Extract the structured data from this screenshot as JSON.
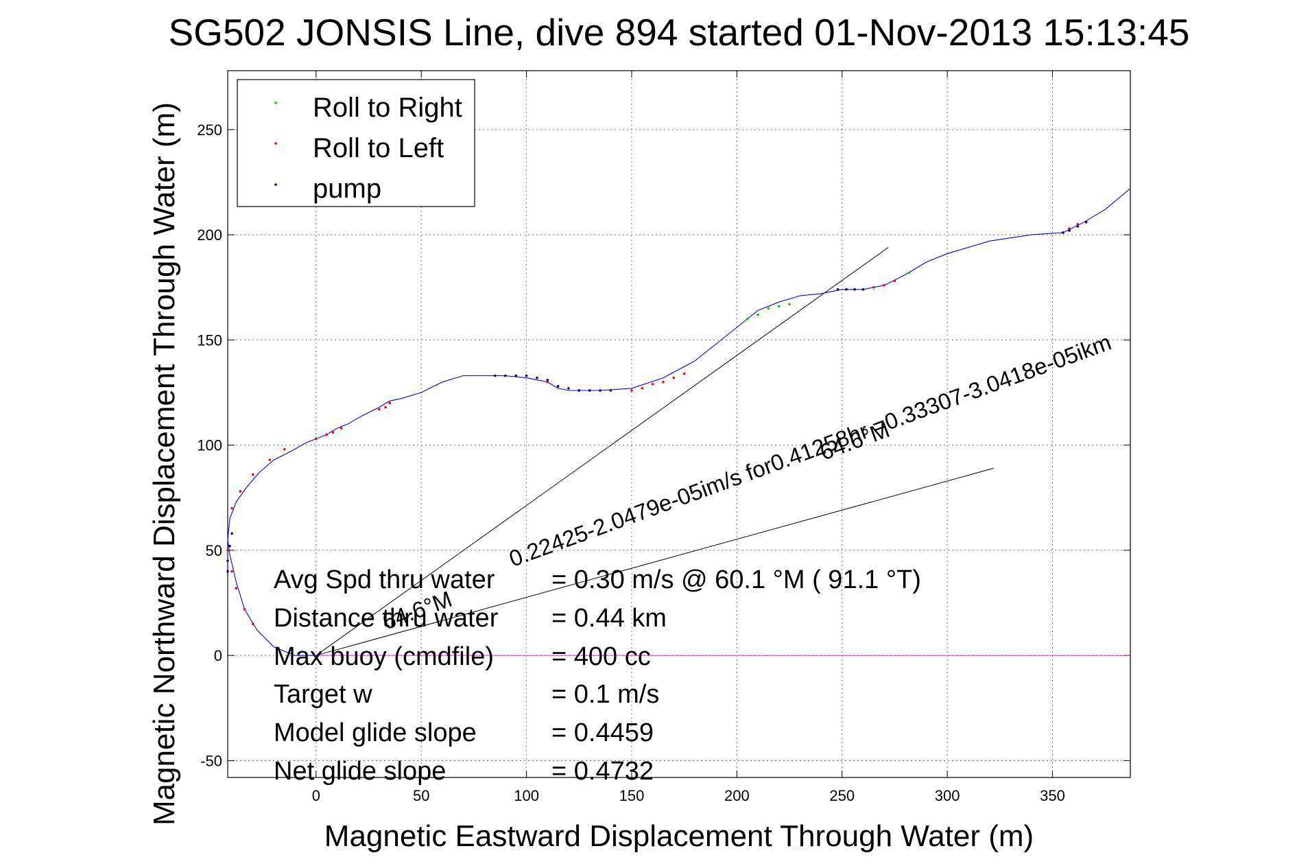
{
  "chart_data": {
    "type": "line",
    "title": "SG502 JONSIS Line, dive 894 started 01-Nov-2013 15:13:45",
    "xlabel": "Magnetic Eastward Displacement Through Water (m)",
    "ylabel": "Magnetic Northward Displacement Through Water (m)",
    "xlim": [
      -42,
      387
    ],
    "ylim": [
      -58,
      278
    ],
    "xticks": [
      0,
      50,
      100,
      150,
      200,
      250,
      300,
      350
    ],
    "yticks": [
      -50,
      0,
      50,
      100,
      150,
      200,
      250
    ],
    "grid": true,
    "legend_position": "top-left",
    "legend": [
      {
        "label": "Roll to Right",
        "color": "#00cc00"
      },
      {
        "label": "Roll to Left",
        "color": "#ff0000"
      },
      {
        "label": "pump",
        "color": "#000080"
      }
    ],
    "track": {
      "color": "#0000ff",
      "x": [
        0,
        -10,
        -20,
        -28,
        -34,
        -38,
        -41,
        -42,
        -41,
        -38,
        -33,
        -27,
        -20,
        -12,
        -5,
        0,
        5,
        10,
        15,
        22,
        30,
        35,
        40,
        50,
        60,
        70,
        80,
        90,
        100,
        110,
        115,
        120,
        125,
        135,
        150,
        165,
        180,
        190,
        200,
        210,
        220,
        230,
        240,
        250,
        260,
        270,
        280,
        290,
        300,
        320,
        340,
        355,
        365,
        375,
        387
      ],
      "y": [
        0,
        0,
        4,
        12,
        22,
        35,
        48,
        55,
        65,
        73,
        80,
        87,
        93,
        97,
        101,
        103,
        105,
        108,
        110,
        114,
        118,
        121,
        122,
        125,
        130,
        133,
        133,
        133,
        132,
        130,
        127,
        126,
        126,
        126,
        127,
        132,
        140,
        148,
        156,
        164,
        168,
        171,
        172,
        174,
        174,
        176,
        181,
        187,
        191,
        197,
        200,
        201,
        206,
        212,
        222
      ]
    },
    "roll_right_x": [
      205,
      210,
      215,
      220,
      225,
      282
    ],
    "roll_right_y": [
      160,
      162,
      165,
      166,
      167,
      182
    ],
    "roll_left_x": [
      -30,
      -34,
      -38,
      -40,
      -42,
      -40,
      -36,
      -30,
      -22,
      -15,
      0,
      5,
      8,
      12,
      30,
      33,
      35,
      110,
      150,
      155,
      160,
      165,
      170,
      175,
      265,
      270,
      275,
      355,
      358,
      362
    ],
    "roll_left_y": [
      15,
      22,
      32,
      40,
      50,
      70,
      78,
      86,
      93,
      98,
      103,
      105,
      106,
      108,
      117,
      118,
      120,
      130,
      126,
      127,
      129,
      130,
      132,
      134,
      175,
      176,
      178,
      201,
      203,
      205
    ],
    "pump_x": [
      -42,
      -42,
      -41,
      -40,
      85,
      90,
      95,
      100,
      105,
      110,
      115,
      120,
      125,
      130,
      135,
      140,
      248,
      252,
      256,
      260,
      355,
      358,
      362,
      366
    ],
    "pump_y": [
      40,
      45,
      52,
      58,
      133,
      133,
      133,
      133,
      132,
      131,
      128,
      127,
      126,
      126,
      126,
      126,
      174,
      174,
      174,
      174,
      201,
      202,
      204,
      206
    ],
    "reference_lines": [
      {
        "x": [
          0,
          272
        ],
        "y": [
          0,
          194
        ]
      },
      {
        "x": [
          0,
          322
        ],
        "y": [
          0,
          89
        ]
      },
      {
        "x": [
          0,
          387
        ],
        "y": [
          0,
          0
        ]
      }
    ],
    "annotations": [
      {
        "text": "0.22425-2.0479e-05im/s for0.41258hr =0.33307-3.0418e-05ikm",
        "x": 0,
        "y": 0
      },
      {
        "text": "64.6°M",
        "x": 0,
        "y": 0
      },
      {
        "text": "64.6°M",
        "x": 0,
        "y": 0
      }
    ],
    "stats": [
      {
        "label": "Avg Spd thru water",
        "value": "=  0.30 m/s @  60.1 °M ( 91.1 °T)"
      },
      {
        "label": "Distance thru water",
        "value": "=  0.44 km"
      },
      {
        "label": "Max buoy (cmdfile)",
        "value": "= 400 cc"
      },
      {
        "label": "Target w",
        "value": "= 0.1 m/s"
      },
      {
        "label": "Model glide slope",
        "value": "= 0.4459"
      },
      {
        "label": "Net glide slope",
        "value": "= 0.4732"
      }
    ]
  }
}
